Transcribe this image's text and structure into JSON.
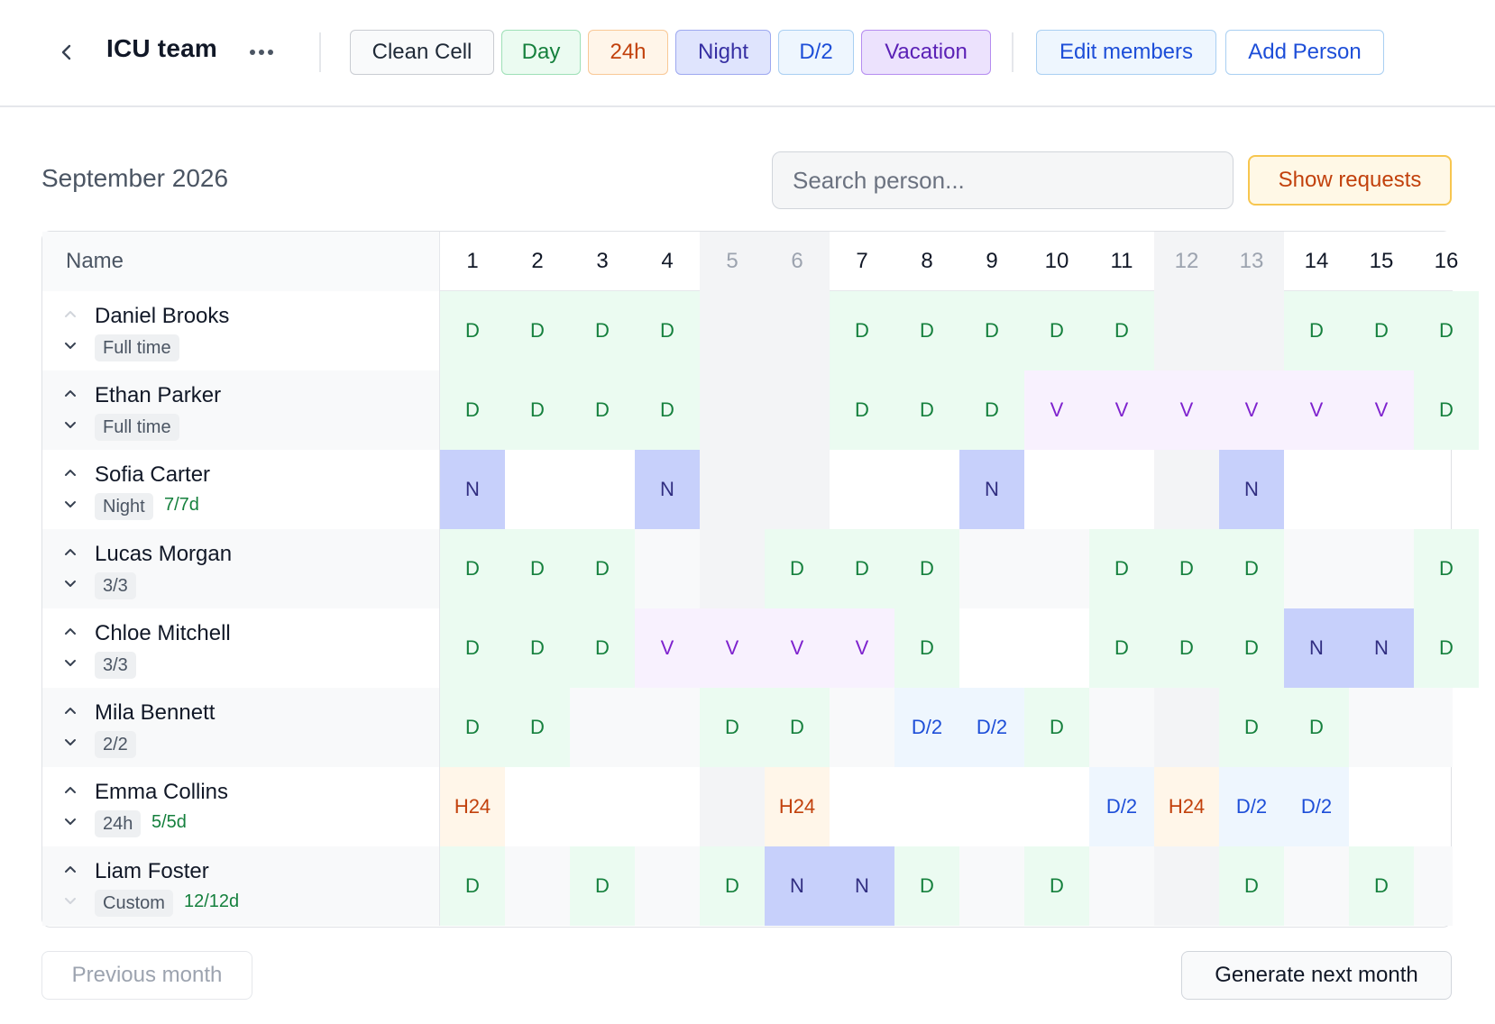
{
  "header": {
    "back_icon": "chevron-left-icon",
    "title": "ICU team",
    "more_icon": "more-horizontal-icon",
    "shift_buttons": {
      "clean": "Clean Cell",
      "day": "Day",
      "h24": "24h",
      "night": "Night",
      "d2": "D/2",
      "vacation": "Vacation"
    },
    "edit_members": "Edit members",
    "add_person": "Add Person"
  },
  "toolbar": {
    "month": "September 2026",
    "search_placeholder": "Search person...",
    "show_requests": "Show requests"
  },
  "table": {
    "name_header": "Name",
    "days": [
      "1",
      "2",
      "3",
      "4",
      "5",
      "6",
      "7",
      "8",
      "9",
      "10",
      "11",
      "12",
      "13",
      "14",
      "15",
      "16"
    ],
    "weekend_days": [
      "5",
      "6",
      "12",
      "13"
    ],
    "rows": [
      {
        "name": "Daniel Brooks",
        "tag": "Full time",
        "quota": "",
        "cells": [
          "D",
          "D",
          "D",
          "D",
          "",
          "",
          "D",
          "D",
          "D",
          "D",
          "D",
          "",
          "",
          "D",
          "D",
          "D"
        ]
      },
      {
        "name": "Ethan Parker",
        "tag": "Full time",
        "quota": "",
        "cells": [
          "D",
          "D",
          "D",
          "D",
          "",
          "",
          "D",
          "D",
          "D",
          "V",
          "V",
          "V",
          "V",
          "V",
          "V",
          "D"
        ]
      },
      {
        "name": "Sofia Carter",
        "tag": "Night",
        "quota": "7/7d",
        "cells": [
          "N",
          "",
          "",
          "N",
          "",
          "",
          "",
          "",
          "N",
          "",
          "",
          "",
          "N",
          "",
          "",
          ""
        ]
      },
      {
        "name": "Lucas Morgan",
        "tag": "3/3",
        "quota": "",
        "cells": [
          "D",
          "D",
          "D",
          "",
          "",
          "D",
          "D",
          "D",
          "",
          "",
          "D",
          "D",
          "D",
          "",
          "",
          "D"
        ]
      },
      {
        "name": "Chloe Mitchell",
        "tag": "3/3",
        "quota": "",
        "cells": [
          "D",
          "D",
          "D",
          "V",
          "V",
          "V",
          "V",
          "D",
          "",
          "",
          "D",
          "D",
          "D",
          "N",
          "N",
          "D"
        ]
      },
      {
        "name": "Mila Bennett",
        "tag": "2/2",
        "quota": "",
        "cells": [
          "D",
          "D",
          "",
          "",
          "D",
          "D",
          "",
          "D/2",
          "D/2",
          "D",
          "",
          "",
          "D",
          "D",
          "",
          ""
        ]
      },
      {
        "name": "Emma Collins",
        "tag": "24h",
        "quota": "5/5d",
        "cells": [
          "H24",
          "",
          "",
          "",
          "",
          "H24",
          "",
          "",
          "",
          "",
          "D/2",
          "H24",
          "D/2",
          "D/2",
          "",
          ""
        ]
      },
      {
        "name": "Liam Foster",
        "tag": "Custom",
        "quota": "12/12d",
        "cells": [
          "D",
          "",
          "D",
          "",
          "D",
          "N",
          "N",
          "D",
          "",
          "D",
          "",
          "",
          "D",
          "",
          "D",
          ""
        ]
      }
    ]
  },
  "footer": {
    "previous_month": "Previous month",
    "generate_next": "Generate next month"
  },
  "colors": {
    "day": "#15803d",
    "h24": "#c2410c",
    "night": "#312e81",
    "d2": "#1d4ed8",
    "vacation": "#7e22ce",
    "request_accent": "#f7c64f"
  }
}
